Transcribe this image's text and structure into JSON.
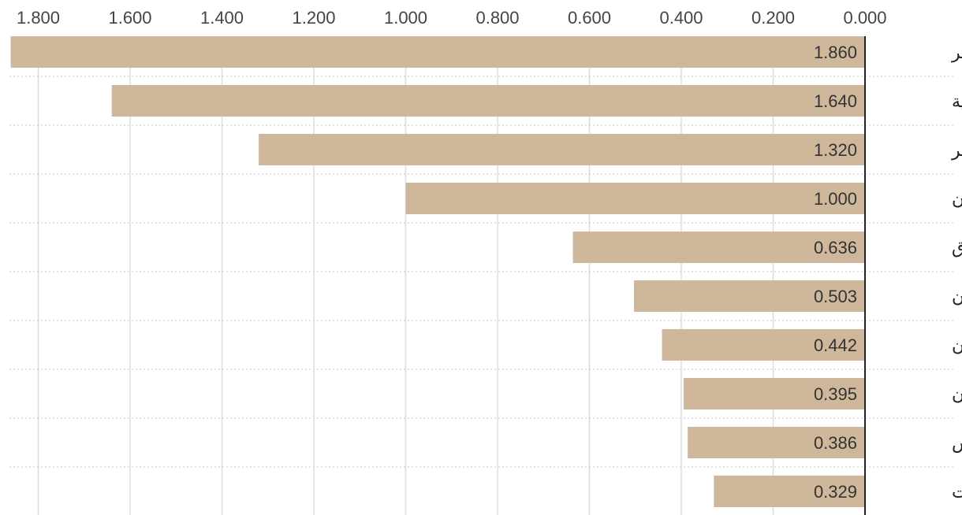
{
  "chart_data": {
    "type": "bar",
    "orientation": "horizontal",
    "x_direction": "right-to-left",
    "categories": [
      "مصر",
      "السعودية",
      "الجزائر",
      "إيران",
      "العراق",
      "باكستان",
      "السودان",
      "عُمان",
      "تونس",
      "الإمارات"
    ],
    "values": [
      1.86,
      1.64,
      1.32,
      1.0,
      0.636,
      0.503,
      0.442,
      0.395,
      0.386,
      0.329
    ],
    "value_labels": [
      "1.860",
      "1.640",
      "1.320",
      "1.000",
      "0.636",
      "0.503",
      "0.442",
      "0.395",
      "0.386",
      "0.329"
    ],
    "ticks": [
      0,
      0.2,
      0.4,
      0.6,
      0.8,
      1.0,
      1.2,
      1.4,
      1.6,
      1.8
    ],
    "tick_labels": [
      "0.000",
      "0.200",
      "0.400",
      "0.600",
      "0.800",
      "1.000",
      "1.200",
      "1.400",
      "1.600",
      "1.800"
    ],
    "xlim": [
      0,
      1.86
    ],
    "tick_position": "top",
    "grid": true,
    "bar_color": "#cfb79c",
    "grid_color": "#dddddd",
    "axis_color": "#222222",
    "title": "",
    "xlabel": "",
    "ylabel": ""
  }
}
